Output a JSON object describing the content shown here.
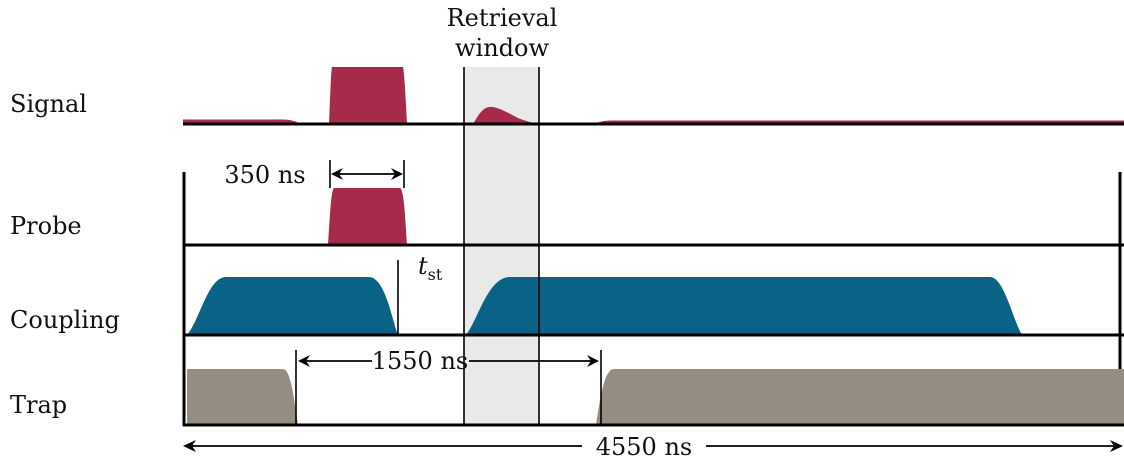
{
  "rows": {
    "signal": "Signal",
    "probe": "Probe",
    "coupling": "Coupling",
    "trap": "Trap"
  },
  "window": {
    "line1": "Retrieval",
    "line2": "window"
  },
  "annotations": {
    "probe_width": "350 ns",
    "storage_time_symbol": "t",
    "storage_time_subscript": "st",
    "trap_gap": "1550 ns",
    "total_period": "4550 ns"
  },
  "colors": {
    "signal_probe": "#A62A49",
    "coupling": "#0B6287",
    "trap": "#958C82",
    "window_shade": "#E9E9E9"
  }
}
